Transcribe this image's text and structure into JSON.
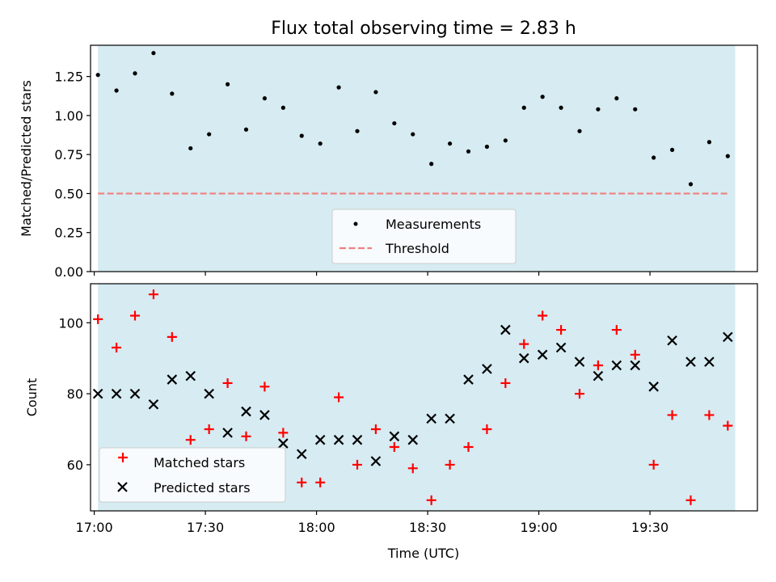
{
  "chart_data": {
    "type": "scatter",
    "title": "Flux total observing time = 2.83 h",
    "xlabel": "Time (UTC)",
    "x_ticks": [
      "17:00",
      "17:30",
      "18:00",
      "18:30",
      "19:00",
      "19:30"
    ],
    "x_range": [
      "16:59",
      "19:59"
    ],
    "shaded_span": [
      "17:01",
      "19:53"
    ],
    "times": [
      "17:01",
      "17:06",
      "17:11",
      "17:16",
      "17:21",
      "17:26",
      "17:31",
      "17:36",
      "17:41",
      "17:46",
      "17:51",
      "17:56",
      "18:01",
      "18:06",
      "18:11",
      "18:16",
      "18:21",
      "18:26",
      "18:31",
      "18:36",
      "18:41",
      "18:46",
      "18:51",
      "18:56",
      "19:01",
      "19:06",
      "19:11",
      "19:16",
      "19:21",
      "19:26",
      "19:31",
      "19:36",
      "19:41",
      "19:46",
      "19:51"
    ],
    "colors": {
      "shade": "#add8e6",
      "threshold": "#f08080",
      "matched": "#ff0000",
      "predicted": "#000000",
      "measurement": "#000000"
    },
    "top": {
      "ylabel": "Matched/Predicted stars",
      "ylim": [
        0,
        1.45
      ],
      "y_ticks": [
        "0.00",
        "0.25",
        "0.50",
        "0.75",
        "1.00",
        "1.25"
      ],
      "measurements": [
        1.26,
        1.16,
        1.27,
        1.4,
        1.14,
        0.79,
        0.88,
        1.2,
        0.91,
        1.11,
        1.05,
        0.87,
        0.82,
        1.18,
        0.9,
        1.15,
        0.95,
        0.88,
        0.69,
        0.82,
        0.77,
        0.8,
        0.84,
        1.05,
        1.12,
        1.05,
        0.9,
        1.04,
        1.11,
        1.04,
        0.73,
        0.78,
        0.56,
        0.83,
        0.74
      ],
      "threshold": 0.5,
      "legend": {
        "placement": "lower center",
        "measurements_label": "Measurements",
        "threshold_label": "Threshold"
      }
    },
    "bottom": {
      "ylabel": "Count",
      "ylim": [
        47,
        111
      ],
      "y_ticks": [
        "60",
        "80",
        "100"
      ],
      "matched": [
        101,
        93,
        102,
        108,
        96,
        67,
        70,
        83,
        68,
        82,
        69,
        55,
        55,
        79,
        60,
        70,
        65,
        59,
        50,
        60,
        65,
        70,
        83,
        94,
        102,
        98,
        80,
        88,
        98,
        91,
        60,
        74,
        50,
        74,
        71
      ],
      "predicted": [
        80,
        80,
        80,
        77,
        84,
        85,
        80,
        69,
        75,
        74,
        66,
        63,
        67,
        67,
        67,
        61,
        68,
        67,
        73,
        73,
        84,
        87,
        98,
        90,
        91,
        93,
        89,
        85,
        88,
        88,
        82,
        95,
        89,
        89,
        96
      ],
      "legend": {
        "placement": "lower left",
        "matched_label": "Matched stars",
        "predicted_label": "Predicted stars"
      }
    }
  }
}
